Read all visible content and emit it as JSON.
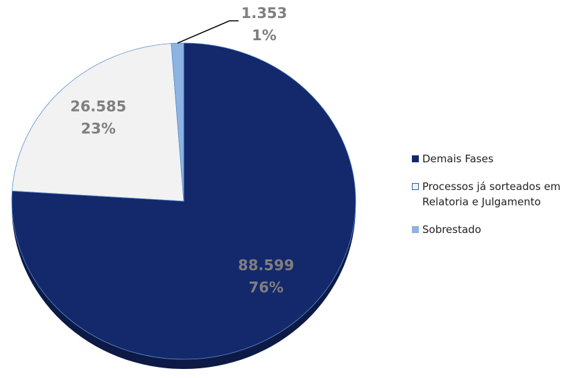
{
  "chart_data": {
    "type": "pie",
    "categories": [
      "Demais Fases",
      "Processos já sorteados em Relatoria e Julgamento",
      "Sobrestado"
    ],
    "values": [
      88599,
      26585,
      1353
    ],
    "value_labels": [
      "88.599",
      "26.585",
      "1.353"
    ],
    "percents": [
      76,
      23,
      1
    ],
    "percent_labels": [
      "76%",
      "23%",
      "1%"
    ],
    "colors": [
      "#14296b",
      "#f2f2f2",
      "#8db3e2"
    ],
    "legend": "right"
  }
}
